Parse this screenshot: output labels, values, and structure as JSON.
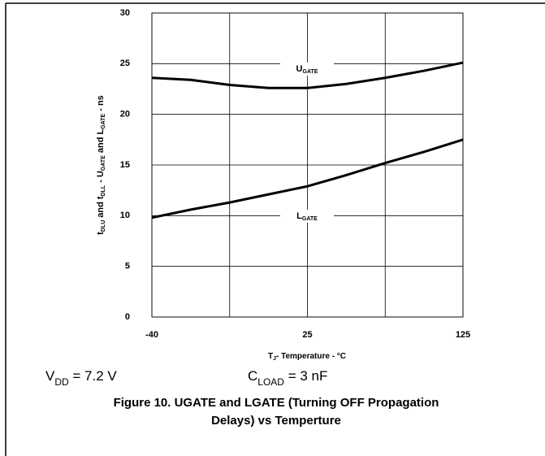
{
  "chart_data": {
    "type": "line",
    "ylabel": [
      "t",
      "DLU",
      " and t",
      "DLL",
      " - U",
      "GATE",
      " and L",
      "GATE",
      " - ns"
    ],
    "xlabel": [
      "T",
      "J",
      "- Temperature - °C"
    ],
    "categories": [
      "-40",
      null,
      null,
      null,
      "25",
      null,
      null,
      null,
      "125"
    ],
    "ylim": [
      0,
      30
    ],
    "yticks": [
      0,
      5,
      10,
      15,
      20,
      25,
      30
    ],
    "grid": true,
    "series": [
      {
        "color": "#000000",
        "values": [
          23.6,
          23.4,
          22.9,
          22.6,
          22.6,
          23.0,
          23.6,
          24.3,
          25.1
        ]
      },
      {
        "color": "#000000",
        "values": [
          9.8,
          10.6,
          11.3,
          12.1,
          12.9,
          14.0,
          15.2,
          16.3,
          17.5
        ]
      }
    ],
    "annotations": [
      [
        "U",
        "GATE"
      ],
      [
        "L",
        "GATE"
      ]
    ],
    "conditions": [
      [
        "V",
        "DD",
        " = 7.2 V"
      ],
      [
        "C",
        "LOAD",
        " = 3 nF"
      ]
    ],
    "caption": [
      "Figure 10. UGATE and LGATE (Turning OFF Propagation",
      "Delays) vs Temperture"
    ]
  }
}
